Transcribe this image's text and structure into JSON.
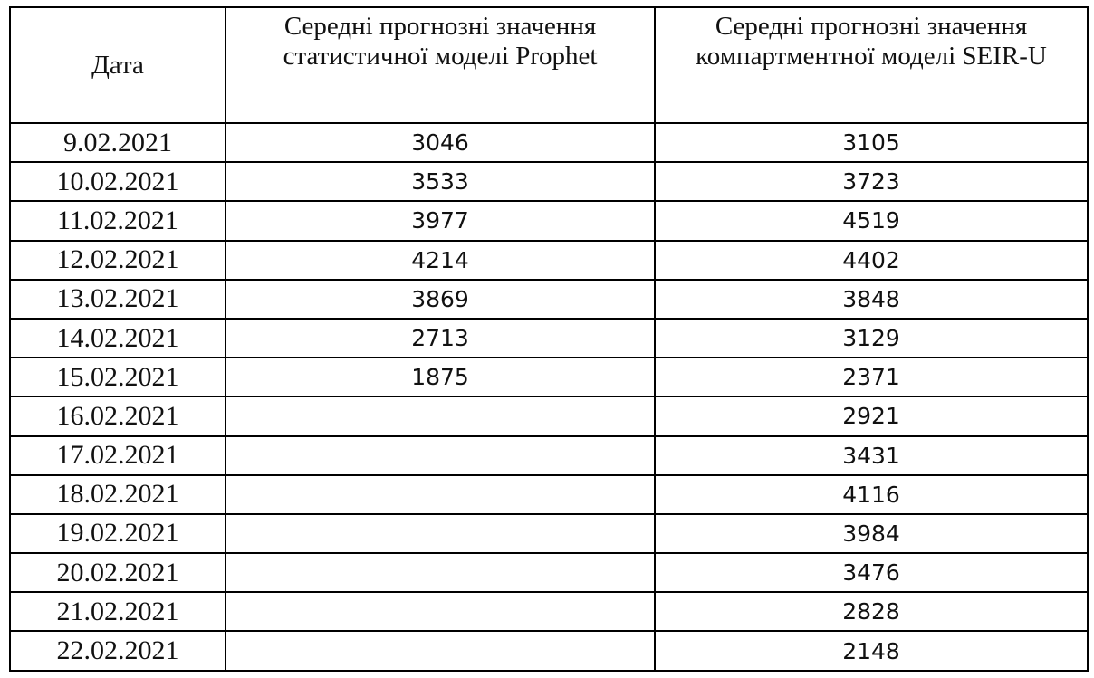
{
  "table": {
    "headers": [
      "Дата",
      "Середні прогнозні значення статистичної моделі Prophet",
      "Середні прогнозні значення компартментної моделі SEIR-U"
    ],
    "rows": [
      {
        "date": "9.02.2021",
        "prophet": "3046",
        "seiru": "3105"
      },
      {
        "date": "10.02.2021",
        "prophet": "3533",
        "seiru": "3723"
      },
      {
        "date": "11.02.2021",
        "prophet": "3977",
        "seiru": "4519"
      },
      {
        "date": "12.02.2021",
        "prophet": "4214",
        "seiru": "4402"
      },
      {
        "date": "13.02.2021",
        "prophet": "3869",
        "seiru": "3848"
      },
      {
        "date": "14.02.2021",
        "prophet": "2713",
        "seiru": "3129"
      },
      {
        "date": "15.02.2021",
        "prophet": "1875",
        "seiru": "2371"
      },
      {
        "date": "16.02.2021",
        "prophet": "",
        "seiru": "2921"
      },
      {
        "date": "17.02.2021",
        "prophet": "",
        "seiru": "3431"
      },
      {
        "date": "18.02.2021",
        "prophet": "",
        "seiru": "4116"
      },
      {
        "date": "19.02.2021",
        "prophet": "",
        "seiru": "3984"
      },
      {
        "date": "20.02.2021",
        "prophet": "",
        "seiru": "3476"
      },
      {
        "date": "21.02.2021",
        "prophet": "",
        "seiru": "2828"
      },
      {
        "date": "22.02.2021",
        "prophet": "",
        "seiru": "2148"
      }
    ]
  }
}
